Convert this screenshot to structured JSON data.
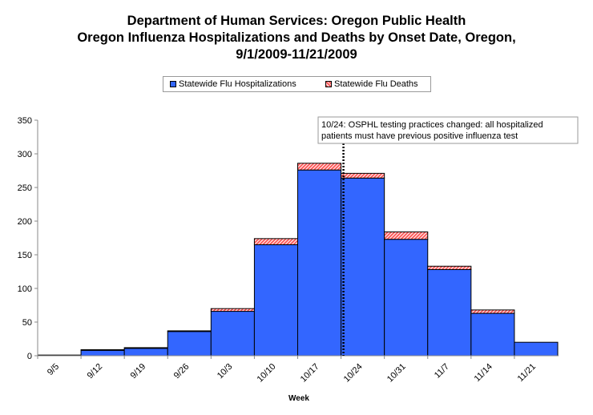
{
  "chart_data": {
    "type": "bar",
    "title_lines": [
      "Department of Human Services: Oregon Public Health",
      "Oregon Influenza Hospitalizations and Deaths by Onset Date, Oregon,",
      "9/1/2009-11/21/2009"
    ],
    "xlabel": "Week",
    "ylabel": "",
    "ylim": [
      0,
      350
    ],
    "yticks": [
      0,
      50,
      100,
      150,
      200,
      250,
      300,
      350
    ],
    "categories": [
      "9/5",
      "9/12",
      "9/19",
      "9/26",
      "10/3",
      "10/10",
      "10/17",
      "10/24",
      "10/31",
      "11/7",
      "11/14",
      "11/21"
    ],
    "stacked": true,
    "series": [
      {
        "name": "Statewide Flu Hospitalizations",
        "color": "#3366ff",
        "values": [
          1,
          8,
          11,
          36,
          66,
          165,
          276,
          264,
          173,
          128,
          63,
          20
        ]
      },
      {
        "name": "Statewide Flu Deaths",
        "color": "#ff5a5a",
        "pattern": "hatched",
        "values": [
          0,
          1,
          1,
          1,
          4,
          9,
          10,
          7,
          11,
          5,
          5,
          0
        ]
      }
    ],
    "legend_position": "top",
    "grid": false,
    "annotation": {
      "text_lines": [
        "10/24: OSPHL testing practices changed: all hospitalized",
        "patients must have previous positive influenza test"
      ],
      "at_category": "10/24",
      "line_style": "dotted"
    }
  }
}
